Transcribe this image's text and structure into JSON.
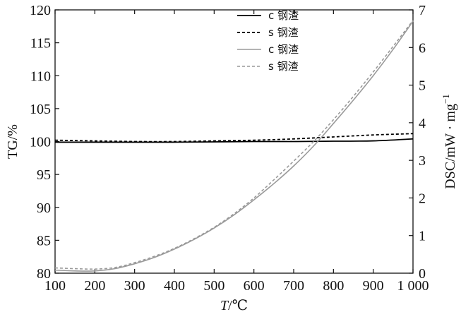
{
  "chart_data": {
    "type": "line",
    "x": {
      "label_italic": "T",
      "label_unit": "/℃",
      "range": [
        100,
        1000
      ],
      "ticks": [
        100,
        200,
        300,
        400,
        500,
        600,
        700,
        800,
        900,
        1000
      ],
      "tick_labels": [
        "100",
        "200",
        "300",
        "400",
        "500",
        "600",
        "700",
        "800",
        "900",
        "1 000"
      ]
    },
    "y_left": {
      "label": "TG/%",
      "range": [
        80,
        120
      ],
      "ticks": [
        80,
        85,
        90,
        95,
        100,
        105,
        110,
        115,
        120
      ],
      "tick_labels": [
        "80",
        "85",
        "90",
        "95",
        "100",
        "105",
        "110",
        "115",
        "120"
      ]
    },
    "y_right": {
      "label": "DSC/mW · mg",
      "label_superscript": "−1",
      "range": [
        0,
        7
      ],
      "ticks": [
        0,
        1,
        2,
        3,
        4,
        5,
        6,
        7
      ],
      "tick_labels": [
        "0",
        "1",
        "2",
        "3",
        "4",
        "5",
        "6",
        "7"
      ]
    },
    "legend_position": "top-center",
    "grid": false,
    "series": [
      {
        "name": "c 钢渣",
        "axis": "left",
        "style": "solid",
        "color": "#000000",
        "x": [
          100,
          200,
          300,
          400,
          500,
          600,
          700,
          800,
          900,
          1000
        ],
        "values": [
          99.9,
          99.9,
          99.9,
          99.9,
          99.95,
          100.0,
          100.0,
          100.05,
          100.1,
          100.4
        ]
      },
      {
        "name": "s 钢渣",
        "axis": "left",
        "style": "dashed",
        "color": "#000000",
        "x": [
          100,
          200,
          300,
          400,
          500,
          600,
          700,
          800,
          900,
          1000
        ],
        "values": [
          100.2,
          100.1,
          100.0,
          100.0,
          100.1,
          100.2,
          100.4,
          100.7,
          101.0,
          101.2
        ]
      },
      {
        "name": "c 钢渣",
        "axis": "right",
        "style": "solid",
        "color": "#9a9a9a",
        "x": [
          100,
          150,
          200,
          250,
          300,
          350,
          400,
          450,
          500,
          550,
          600,
          650,
          700,
          750,
          800,
          850,
          900,
          950,
          1000
        ],
        "values": [
          0.08,
          0.06,
          0.06,
          0.12,
          0.25,
          0.42,
          0.64,
          0.9,
          1.2,
          1.55,
          1.95,
          2.38,
          2.85,
          3.38,
          3.98,
          4.6,
          5.25,
          5.95,
          6.7
        ]
      },
      {
        "name": "s 钢渣",
        "axis": "right",
        "style": "dashed",
        "color": "#9a9a9a",
        "x": [
          100,
          150,
          200,
          250,
          300,
          350,
          400,
          450,
          500,
          550,
          600,
          650,
          700,
          750,
          800,
          850,
          900,
          950,
          1000
        ],
        "values": [
          0.14,
          0.12,
          0.11,
          0.15,
          0.28,
          0.45,
          0.66,
          0.92,
          1.22,
          1.58,
          2.0,
          2.48,
          2.98,
          3.5,
          4.08,
          4.7,
          5.35,
          6.03,
          6.72
        ]
      }
    ]
  }
}
